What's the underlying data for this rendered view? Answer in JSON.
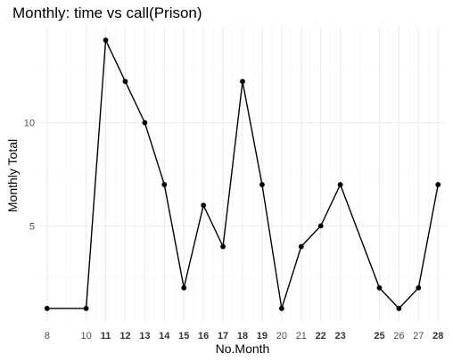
{
  "chart_data": {
    "type": "line",
    "title": "Monthly: time vs call(Prison)",
    "xlabel": "No.Month",
    "ylabel": "Monthly Total",
    "x": [
      8,
      10,
      11,
      12,
      13,
      14,
      15,
      16,
      17,
      18,
      19,
      20,
      21,
      22,
      23,
      25,
      26,
      27,
      28
    ],
    "x_tick_labels": [
      "8",
      "10",
      "11",
      "12",
      "13",
      "14",
      "15",
      "16",
      "17",
      "18",
      "19",
      "20",
      "21",
      "22",
      "23",
      "25",
      "26",
      "27",
      "28"
    ],
    "x_bold_ticks": [
      "11",
      "12",
      "13",
      "14",
      "15",
      "16",
      "17",
      "18",
      "19",
      "22",
      "23",
      "25",
      "28"
    ],
    "series": [
      {
        "values": [
          1,
          1,
          14,
          12,
          10,
          7,
          2,
          6,
          4,
          12,
          7,
          1,
          4,
          5,
          7,
          2,
          1,
          2,
          7
        ]
      }
    ],
    "y_ticks": [
      5,
      10
    ],
    "y_tick_labels": [
      "5",
      "10"
    ],
    "xlim": [
      7.6,
      28.4
    ],
    "ylim": [
      0.35,
      14.65
    ],
    "grid": true,
    "theme": "minimal"
  }
}
